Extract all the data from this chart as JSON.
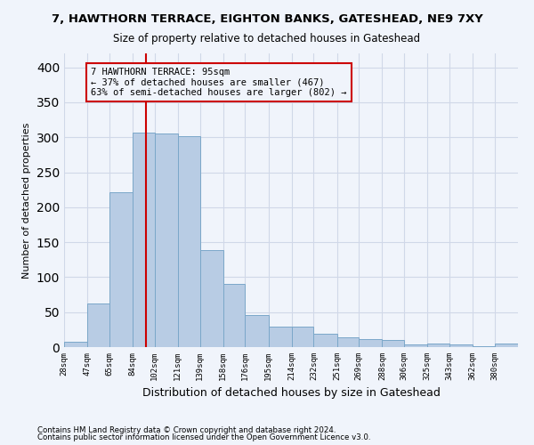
{
  "title1": "7, HAWTHORN TERRACE, EIGHTON BANKS, GATESHEAD, NE9 7XY",
  "title2": "Size of property relative to detached houses in Gateshead",
  "xlabel": "Distribution of detached houses by size in Gateshead",
  "ylabel": "Number of detached properties",
  "footnote1": "Contains HM Land Registry data © Crown copyright and database right 2024.",
  "footnote2": "Contains public sector information licensed under the Open Government Licence v3.0.",
  "annotation_title": "7 HAWTHORN TERRACE: 95sqm",
  "annotation_line1": "← 37% of detached houses are smaller (467)",
  "annotation_line2": "63% of semi-detached houses are larger (802) →",
  "property_sqm": 95,
  "bar_edges": [
    28,
    47,
    65,
    84,
    102,
    121,
    139,
    158,
    176,
    195,
    214,
    232,
    251,
    269,
    288,
    306,
    325,
    343,
    362,
    380,
    399
  ],
  "bar_heights": [
    8,
    63,
    221,
    307,
    305,
    302,
    139,
    90,
    46,
    29,
    29,
    19,
    14,
    12,
    10,
    4,
    5,
    4,
    1,
    5
  ],
  "bar_color": "#b8cce4",
  "bar_edge_color": "#7ba7c9",
  "grid_color": "#d0d8e8",
  "vline_color": "#cc0000",
  "annotation_box_color": "#cc0000",
  "ylim": [
    0,
    420
  ],
  "yticks": [
    0,
    50,
    100,
    150,
    200,
    250,
    300,
    350,
    400
  ],
  "background_color": "#f0f4fb"
}
